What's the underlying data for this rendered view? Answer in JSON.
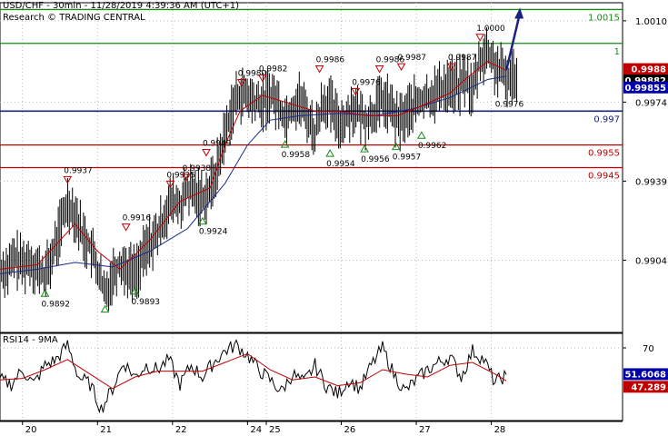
{
  "header": {
    "title": "USD/CHF - 30min - 11/28/2019 4:39:36 AM (UTC+1)",
    "subtitle": "Research © TRADING CENTRAL"
  },
  "rsi_panel": {
    "title": "RSI14 - 9MA"
  },
  "colors": {
    "price": "#000000",
    "ma_fast": "#c00000",
    "ma_slow": "#1a2a8a",
    "resistance_green": "#1a8a1a",
    "pivot_blue": "#1a237e",
    "support_red": "#c00000",
    "arrow": "#1a237e",
    "badge_red": "#c00000",
    "badge_black": "#000000",
    "badge_blue": "#0000aa"
  },
  "chart_data": [
    {
      "type": "line",
      "panel": "price",
      "ylim": [
        0.9872,
        1.0018
      ],
      "x_range": [
        0,
        8.3
      ],
      "y_ticks": [
        "1.0010",
        "0.9974",
        "0.9939",
        "0.9904"
      ],
      "x_ticks": [
        {
          "label": "20",
          "day": 0.3
        },
        {
          "label": "21",
          "day": 1.3
        },
        {
          "label": "22",
          "day": 2.3
        },
        {
          "label": "24",
          "day": 3.3
        },
        {
          "label": "25",
          "day": 3.55
        },
        {
          "label": "26",
          "day": 4.55
        },
        {
          "label": "27",
          "day": 5.55
        },
        {
          "label": "28",
          "day": 6.55
        }
      ],
      "levels": [
        {
          "value": 1.0015,
          "label": "1.0015",
          "color": "green"
        },
        {
          "value": 1.0,
          "label": "1",
          "color": "green"
        },
        {
          "value": 0.997,
          "label": "0.997",
          "color": "blue"
        },
        {
          "value": 0.9955,
          "label": "0.9955",
          "color": "red"
        },
        {
          "value": 0.9945,
          "label": "0.9945",
          "color": "red"
        }
      ],
      "badges": [
        {
          "value": 0.9988,
          "label": "0.9988",
          "color": "red"
        },
        {
          "value": 0.99882,
          "label": "0.99882",
          "color": "black"
        },
        {
          "value": 0.99855,
          "label": "0.99855",
          "color": "blue"
        }
      ],
      "annotations": [
        {
          "day": 0.6,
          "value": 0.9892,
          "label": "0.9892",
          "kind": "low"
        },
        {
          "day": 0.9,
          "value": 0.9937,
          "label": "0.9937",
          "kind": "high"
        },
        {
          "day": 1.4,
          "value": 0.9885,
          "label": "",
          "kind": "low"
        },
        {
          "day": 1.68,
          "value": 0.9916,
          "label": "0.9916",
          "kind": "high"
        },
        {
          "day": 1.8,
          "value": 0.9893,
          "label": "0.9893",
          "kind": "low"
        },
        {
          "day": 2.27,
          "value": 0.9935,
          "label": "0.9935",
          "kind": "high"
        },
        {
          "day": 2.48,
          "value": 0.9938,
          "label": "0.9938",
          "kind": "high"
        },
        {
          "day": 2.7,
          "value": 0.9924,
          "label": "0.9924",
          "kind": "low"
        },
        {
          "day": 2.75,
          "value": 0.9949,
          "label": "0.9949",
          "kind": "high"
        },
        {
          "day": 3.22,
          "value": 0.998,
          "label": "0.9980",
          "kind": "high"
        },
        {
          "day": 3.5,
          "value": 0.9982,
          "label": "0.9982",
          "kind": "high"
        },
        {
          "day": 3.8,
          "value": 0.9958,
          "label": "0.9958",
          "kind": "low"
        },
        {
          "day": 4.26,
          "value": 0.9986,
          "label": "0.9986",
          "kind": "high"
        },
        {
          "day": 4.4,
          "value": 0.9954,
          "label": "0.9954",
          "kind": "low"
        },
        {
          "day": 4.74,
          "value": 0.9976,
          "label": "0.9976",
          "kind": "high"
        },
        {
          "day": 4.86,
          "value": 0.9956,
          "label": "0.9956",
          "kind": "low"
        },
        {
          "day": 5.06,
          "value": 0.9986,
          "label": "0.9986",
          "kind": "high"
        },
        {
          "day": 5.28,
          "value": 0.9957,
          "label": "0.9957",
          "kind": "low"
        },
        {
          "day": 5.35,
          "value": 0.9987,
          "label": "0.9987",
          "kind": "high"
        },
        {
          "day": 5.62,
          "value": 0.9962,
          "label": "0.9962",
          "kind": "low"
        },
        {
          "day": 6.02,
          "value": 0.9987,
          "label": "0.9987",
          "kind": "high"
        },
        {
          "day": 6.4,
          "value": 1.0,
          "label": "1.0000",
          "kind": "high"
        },
        {
          "day": 6.6,
          "value": 0.9976,
          "label": "0.9976",
          "kind": "pivot"
        }
      ],
      "series": [
        {
          "role": "price",
          "x": [
            0.0,
            0.1,
            0.2,
            0.3,
            0.4,
            0.5,
            0.6,
            0.7,
            0.8,
            0.9,
            1.0,
            1.1,
            1.2,
            1.3,
            1.4,
            1.5,
            1.6,
            1.7,
            1.8,
            1.9,
            2.0,
            2.1,
            2.2,
            2.3,
            2.4,
            2.5,
            2.6,
            2.7,
            2.8,
            2.9,
            3.0,
            3.1,
            3.2,
            3.3,
            3.4,
            3.5,
            3.6,
            3.7,
            3.8,
            3.9,
            4.0,
            4.1,
            4.2,
            4.3,
            4.4,
            4.5,
            4.6,
            4.7,
            4.8,
            4.9,
            5.0,
            5.1,
            5.2,
            5.3,
            5.4,
            5.5,
            5.6,
            5.7,
            5.8,
            5.9,
            6.0,
            6.1,
            6.2,
            6.3,
            6.4,
            6.5,
            6.6,
            6.7,
            6.8,
            6.9
          ],
          "values": [
            0.99,
            0.99,
            0.9905,
            0.9902,
            0.9904,
            0.99,
            0.9897,
            0.9906,
            0.9918,
            0.993,
            0.9925,
            0.9915,
            0.991,
            0.99,
            0.9888,
            0.9898,
            0.9903,
            0.99,
            0.9898,
            0.9905,
            0.9912,
            0.9915,
            0.9925,
            0.993,
            0.9928,
            0.9935,
            0.9933,
            0.9932,
            0.9935,
            0.9945,
            0.996,
            0.9972,
            0.9978,
            0.9976,
            0.9974,
            0.9973,
            0.9978,
            0.9974,
            0.9967,
            0.9972,
            0.9975,
            0.9968,
            0.996,
            0.9974,
            0.9973,
            0.9965,
            0.9966,
            0.9972,
            0.9968,
            0.9966,
            0.997,
            0.9975,
            0.9972,
            0.9965,
            0.9968,
            0.9972,
            0.9974,
            0.9976,
            0.9978,
            0.998,
            0.9983,
            0.998,
            0.9985,
            0.9978,
            0.9993,
            0.9996,
            0.999,
            0.9986,
            0.9984,
            0.9988
          ]
        },
        {
          "role": "ma_fast",
          "x": [
            0.0,
            0.5,
            1.0,
            1.3,
            1.6,
            2.0,
            2.4,
            2.8,
            3.0,
            3.2,
            3.5,
            3.8,
            4.2,
            4.5,
            4.9,
            5.3,
            5.6,
            6.0,
            6.2,
            6.5,
            6.75
          ],
          "values": [
            0.99,
            0.9902,
            0.992,
            0.9908,
            0.99,
            0.9913,
            0.993,
            0.9936,
            0.9955,
            0.997,
            0.9977,
            0.9974,
            0.997,
            0.997,
            0.9968,
            0.9968,
            0.9972,
            0.9978,
            0.9984,
            0.9992,
            0.9988
          ]
        },
        {
          "role": "ma_slow",
          "x": [
            0.0,
            0.5,
            1.0,
            1.5,
            2.0,
            2.5,
            3.0,
            3.3,
            3.6,
            4.0,
            4.5,
            5.0,
            5.5,
            6.0,
            6.5,
            6.75
          ],
          "values": [
            0.9898,
            0.99,
            0.9903,
            0.9901,
            0.9908,
            0.9918,
            0.9938,
            0.9955,
            0.9966,
            0.9968,
            0.9969,
            0.9968,
            0.9971,
            0.9976,
            0.9984,
            0.99855
          ]
        },
        {
          "role": "forecast",
          "x": [
            6.75,
            6.92
          ],
          "values": [
            0.9988,
            1.0015
          ]
        }
      ]
    },
    {
      "type": "line",
      "panel": "rsi",
      "ylim": [
        20,
        80
      ],
      "x_range": [
        0,
        8.3
      ],
      "y_ticks": [
        "70"
      ],
      "badges": [
        {
          "value": 51.6068,
          "label": "51.6068",
          "color": "blue"
        },
        {
          "value": 47.289,
          "label": "47.289",
          "color": "red"
        }
      ],
      "series": [
        {
          "role": "rsi",
          "x": [
            0.0,
            0.15,
            0.3,
            0.45,
            0.6,
            0.75,
            0.9,
            1.05,
            1.2,
            1.35,
            1.5,
            1.65,
            1.8,
            1.95,
            2.1,
            2.25,
            2.4,
            2.55,
            2.7,
            2.85,
            3.0,
            3.15,
            3.3,
            3.45,
            3.6,
            3.75,
            3.9,
            4.05,
            4.2,
            4.35,
            4.5,
            4.65,
            4.8,
            4.95,
            5.1,
            5.25,
            5.4,
            5.55,
            5.7,
            5.85,
            6.0,
            6.15,
            6.3,
            6.45,
            6.6,
            6.75
          ],
          "values": [
            48,
            45,
            55,
            45,
            58,
            62,
            72,
            50,
            45,
            28,
            42,
            60,
            50,
            58,
            55,
            62,
            45,
            58,
            50,
            60,
            68,
            72,
            65,
            55,
            48,
            40,
            52,
            46,
            58,
            44,
            38,
            48,
            42,
            58,
            70,
            52,
            40,
            48,
            55,
            60,
            64,
            50,
            68,
            62,
            46,
            51.6
          ]
        },
        {
          "role": "rsi_ma",
          "x": [
            0.0,
            0.3,
            0.6,
            0.9,
            1.2,
            1.5,
            1.8,
            2.1,
            2.4,
            2.7,
            3.0,
            3.3,
            3.6,
            3.9,
            4.2,
            4.5,
            4.8,
            5.1,
            5.4,
            5.7,
            6.0,
            6.3,
            6.6,
            6.75
          ],
          "values": [
            48,
            49,
            55,
            62,
            52,
            42,
            50,
            54,
            54,
            54,
            60,
            66,
            55,
            48,
            50,
            44,
            46,
            55,
            52,
            50,
            58,
            60,
            52,
            47.3
          ]
        }
      ]
    }
  ]
}
